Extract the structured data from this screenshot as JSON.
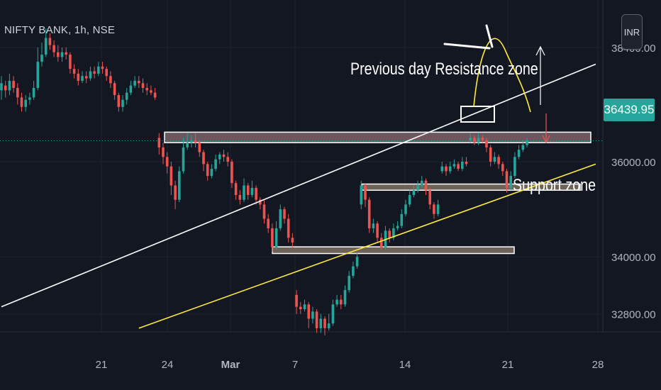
{
  "title": "NIFTY BANK, 1h, NSE",
  "currency_button": "INR",
  "current_price": "36439.95",
  "annotations": {
    "resistance": "Previous day Resistance zone",
    "support": "Support zone"
  },
  "colors": {
    "background": "#131722",
    "up": "#26a69a",
    "down": "#ef5350",
    "resistance_zone": "#8a6d74",
    "support_zone": "#8c7e6c",
    "white_trendline": "#ffffff",
    "yellow_trendline": "#ffeb3b",
    "price_tag": "#26a69a"
  },
  "chart_data": {
    "type": "candlestick",
    "title": "NIFTY BANK, 1h, NSE",
    "y_ticks": [
      {
        "value": 38400,
        "label": "38400.00"
      },
      {
        "value": 36000,
        "label": "36000.00"
      },
      {
        "value": 34000,
        "label": "34000.00"
      },
      {
        "value": 32800,
        "label": "32800.00"
      }
    ],
    "x_ticks": [
      "21",
      "24",
      "Mar",
      "7",
      "14",
      "21",
      "28"
    ],
    "ylim": [
      32400,
      39100
    ],
    "current_price": 36439.95,
    "resistance_zone": {
      "low": 36400,
      "high": 36620
    },
    "support_zones": [
      {
        "low": 35400,
        "high": 35530
      },
      {
        "low": 34070,
        "high": 34210
      }
    ],
    "trendlines": [
      {
        "name": "white",
        "points": [
          [
            0,
            32950
          ],
          [
            147,
            38050
          ]
        ]
      },
      {
        "name": "yellow",
        "points": [
          [
            34,
            32500
          ],
          [
            147,
            35950
          ]
        ]
      }
    ],
    "candles": [
      [
        0,
        37500,
        37650,
        37800,
        37300
      ],
      [
        1,
        37600,
        37500,
        37700,
        37350
      ],
      [
        2,
        37500,
        37700,
        37850,
        37400
      ],
      [
        3,
        37700,
        37550,
        37800,
        37450
      ],
      [
        4,
        37550,
        37350,
        37650,
        37200
      ],
      [
        5,
        37350,
        37150,
        37450,
        37050
      ],
      [
        6,
        37150,
        37300,
        37400,
        37050
      ],
      [
        7,
        37300,
        37350,
        37450,
        37200
      ],
      [
        8,
        37350,
        37550,
        37700,
        37300
      ],
      [
        9,
        37550,
        38100,
        38400,
        37500
      ],
      [
        10,
        38100,
        38250,
        38500,
        38000
      ],
      [
        11,
        38250,
        38600,
        38800,
        38200
      ],
      [
        12,
        38600,
        38450,
        38700,
        38350
      ],
      [
        13,
        38450,
        38300,
        38550,
        38200
      ],
      [
        14,
        38300,
        38200,
        38450,
        38100
      ],
      [
        15,
        38200,
        38300,
        38400,
        38100
      ],
      [
        16,
        38300,
        38250,
        38400,
        38150
      ],
      [
        17,
        38250,
        37950,
        38300,
        37850
      ],
      [
        18,
        37950,
        37850,
        38050,
        37750
      ],
      [
        19,
        37850,
        37700,
        37950,
        37600
      ],
      [
        20,
        37700,
        37800,
        37900,
        37650
      ],
      [
        21,
        37800,
        37750,
        37900,
        37650
      ],
      [
        22,
        37750,
        37900,
        38000,
        37700
      ],
      [
        23,
        37900,
        37850,
        38000,
        37750
      ],
      [
        24,
        37850,
        38000,
        38100,
        37800
      ],
      [
        25,
        38000,
        37950,
        38100,
        37850
      ],
      [
        26,
        37950,
        37800,
        38000,
        37700
      ],
      [
        27,
        37800,
        37650,
        37900,
        37550
      ],
      [
        28,
        37650,
        37400,
        37700,
        37300
      ],
      [
        29,
        37400,
        37150,
        37450,
        37050
      ],
      [
        30,
        37150,
        37300,
        37400,
        37050
      ],
      [
        31,
        37300,
        37450,
        37550,
        37200
      ],
      [
        32,
        37450,
        37600,
        37700,
        37400
      ],
      [
        33,
        37600,
        37700,
        37800,
        37550
      ],
      [
        34,
        37700,
        37650,
        37800,
        37550
      ],
      [
        35,
        37650,
        37550,
        37750,
        37450
      ],
      [
        36,
        37550,
        37500,
        37650,
        37400
      ],
      [
        37,
        37500,
        37450,
        37600,
        37400
      ],
      [
        38,
        37450,
        37350,
        37550,
        37300
      ],
      [
        39,
        36500,
        36300,
        36600,
        36150
      ],
      [
        40,
        36300,
        36100,
        36400,
        35950
      ],
      [
        41,
        36100,
        35900,
        36200,
        35750
      ],
      [
        42,
        35900,
        35500,
        36000,
        35300
      ],
      [
        43,
        35500,
        35200,
        35600,
        35000
      ],
      [
        44,
        35200,
        35800,
        35900,
        35150
      ],
      [
        45,
        35800,
        36300,
        36500,
        35750
      ],
      [
        46,
        36300,
        36400,
        36600,
        36250
      ],
      [
        47,
        36400,
        36450,
        36550,
        36300
      ],
      [
        48,
        36450,
        36400,
        36600,
        36300
      ],
      [
        49,
        36400,
        36200,
        36450,
        36100
      ],
      [
        50,
        36200,
        35950,
        36250,
        35800
      ],
      [
        51,
        35950,
        35700,
        36000,
        35600
      ],
      [
        52,
        35700,
        35850,
        35950,
        35650
      ],
      [
        53,
        35850,
        36050,
        36150,
        35800
      ],
      [
        54,
        36050,
        36150,
        36200,
        35950
      ],
      [
        55,
        36150,
        36100,
        36250,
        36000
      ],
      [
        56,
        36100,
        36000,
        36200,
        35900
      ],
      [
        57,
        36000,
        35550,
        36050,
        35450
      ],
      [
        58,
        35550,
        35300,
        35600,
        35200
      ],
      [
        59,
        35300,
        35200,
        35400,
        35100
      ],
      [
        60,
        35200,
        35500,
        35650,
        35150
      ],
      [
        61,
        35500,
        35300,
        35550,
        35200
      ],
      [
        62,
        35300,
        35450,
        35600,
        35250
      ],
      [
        63,
        35450,
        35200,
        35500,
        35100
      ],
      [
        64,
        35200,
        35100,
        35250,
        35000
      ],
      [
        65,
        35100,
        34800,
        35200,
        34700
      ],
      [
        66,
        34800,
        34600,
        34900,
        34500
      ],
      [
        67,
        34600,
        34200,
        34700,
        34100
      ],
      [
        68,
        34200,
        34600,
        34750,
        34150
      ],
      [
        69,
        34600,
        35000,
        35100,
        34550
      ],
      [
        70,
        35000,
        34800,
        35050,
        34700
      ],
      [
        71,
        34800,
        34400,
        34900,
        34300
      ],
      [
        72,
        34400,
        34300,
        34500,
        34200
      ],
      [
        73,
        33200,
        32950,
        33300,
        32800
      ],
      [
        74,
        32950,
        32900,
        33050,
        32800
      ],
      [
        75,
        32900,
        33000,
        33100,
        32850
      ],
      [
        76,
        33000,
        32700,
        33050,
        32500
      ],
      [
        77,
        32700,
        32850,
        32950,
        32600
      ],
      [
        78,
        32850,
        32500,
        32900,
        32400
      ],
      [
        79,
        32500,
        32700,
        32800,
        32400
      ],
      [
        80,
        32700,
        32500,
        32750,
        32350
      ],
      [
        81,
        32500,
        32600,
        32800,
        32450
      ],
      [
        82,
        32600,
        33000,
        33100,
        32550
      ],
      [
        83,
        33000,
        33100,
        33200,
        32950
      ],
      [
        84,
        33100,
        33000,
        33200,
        32900
      ],
      [
        85,
        33000,
        33300,
        33400,
        32950
      ],
      [
        86,
        33300,
        33600,
        33700,
        33250
      ],
      [
        87,
        33600,
        33800,
        33900,
        33550
      ],
      [
        88,
        33800,
        34000,
        34100,
        33750
      ],
      [
        89,
        35100,
        35500,
        35600,
        35000
      ],
      [
        90,
        35500,
        35200,
        35550,
        35050
      ],
      [
        91,
        35200,
        34600,
        35250,
        34500
      ],
      [
        92,
        34600,
        34700,
        34800,
        34500
      ],
      [
        93,
        34700,
        34400,
        34750,
        34300
      ],
      [
        94,
        34400,
        34200,
        34500,
        34150
      ],
      [
        95,
        34200,
        34550,
        34650,
        34150
      ],
      [
        96,
        34550,
        34400,
        34600,
        34300
      ],
      [
        97,
        34400,
        34600,
        34700,
        34350
      ],
      [
        98,
        34600,
        34650,
        34750,
        34550
      ],
      [
        99,
        34650,
        34900,
        35000,
        34600
      ],
      [
        100,
        34900,
        35100,
        35200,
        34850
      ],
      [
        101,
        35100,
        35300,
        35400,
        35050
      ],
      [
        102,
        35300,
        35400,
        35500,
        35250
      ],
      [
        103,
        35400,
        35500,
        35600,
        35350
      ],
      [
        104,
        35500,
        35600,
        35700,
        35450
      ],
      [
        105,
        35600,
        35400,
        35650,
        35300
      ],
      [
        106,
        35400,
        35100,
        35450,
        35000
      ],
      [
        107,
        35100,
        34900,
        35150,
        34800
      ],
      [
        108,
        34900,
        35100,
        35200,
        34850
      ],
      [
        109,
        35800,
        35900,
        36000,
        35750
      ],
      [
        110,
        35900,
        35800,
        35950,
        35700
      ],
      [
        111,
        35800,
        35900,
        36000,
        35750
      ],
      [
        112,
        35900,
        35950,
        36050,
        35850
      ],
      [
        113,
        35950,
        35850,
        36000,
        35800
      ],
      [
        114,
        35850,
        36000,
        36100,
        35800
      ],
      [
        115,
        36000,
        35950,
        36100,
        35900
      ],
      [
        116,
        36450,
        36500,
        36600,
        36400
      ],
      [
        117,
        36500,
        36400,
        36550,
        36350
      ],
      [
        118,
        36400,
        36500,
        36600,
        36350
      ],
      [
        119,
        36500,
        36450,
        36550,
        36400
      ],
      [
        120,
        36450,
        36300,
        36500,
        36200
      ],
      [
        121,
        36300,
        36000,
        36350,
        35900
      ],
      [
        122,
        36000,
        36100,
        36200,
        35950
      ],
      [
        123,
        36100,
        35950,
        36150,
        35850
      ],
      [
        124,
        35950,
        35800,
        36000,
        35700
      ],
      [
        125,
        35800,
        35450,
        35850,
        35350
      ],
      [
        126,
        35450,
        35700,
        35800,
        35400
      ],
      [
        127,
        35700,
        36100,
        36200,
        35650
      ],
      [
        128,
        36100,
        36250,
        36350,
        36050
      ],
      [
        129,
        36250,
        36350,
        36450,
        36200
      ],
      [
        130,
        36350,
        36440,
        36500,
        36300
      ]
    ]
  }
}
